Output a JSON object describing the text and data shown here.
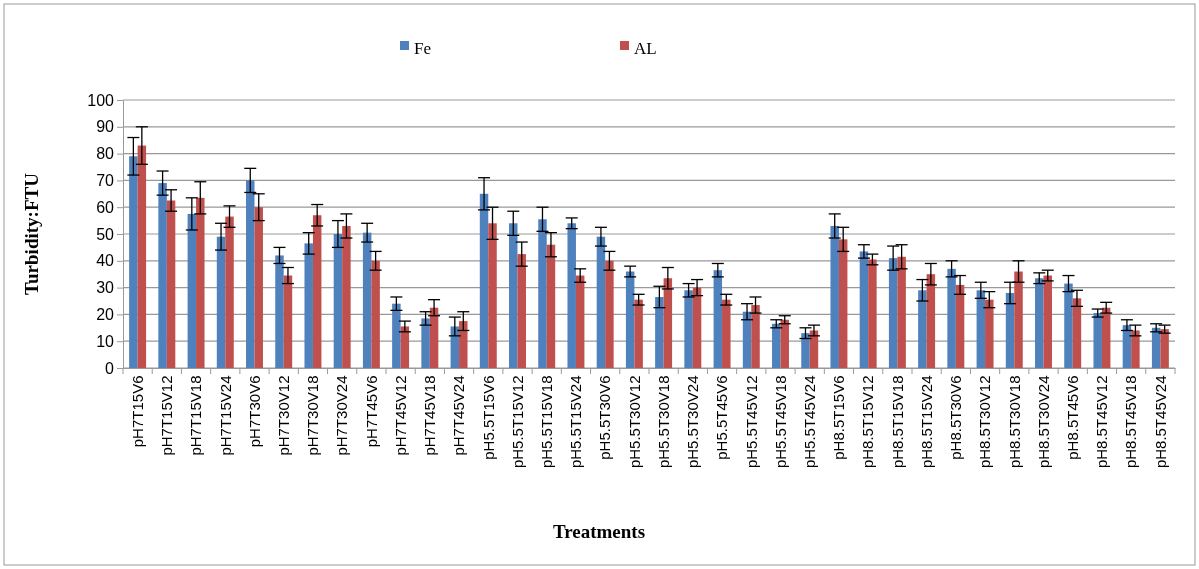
{
  "chart_data": {
    "type": "bar",
    "xlabel": "Treatments",
    "ylabel": "Turbidity:FTU",
    "categories": [
      "pH7T15V6",
      "pH7T15V12",
      "pH7T15V18",
      "pH7T15V24",
      "pH7T30V6",
      "pH7T30V12",
      "pH7T30V18",
      "pH7T30V24",
      "pH7T45V6",
      "pH7T45V12",
      "pH7T45V18",
      "pH7T45V24",
      "pH5.5T15V6",
      "pH5.5T15V12",
      "pH5.5T15V18",
      "pH5.5T15V24",
      "pH5.5T30V6",
      "pH5.5T30V12",
      "pH5.5T30V18",
      "pH5.5T30V24",
      "pH5.5T45V6",
      "pH5.5T45V12",
      "pH5.5T45V18",
      "pH5.5T45V24",
      "pH8.5T15V6",
      "pH8.5T15V12",
      "pH8.5T15V18",
      "pH8.5T15V24",
      "pH8.5T30V6",
      "pH8.5T30V12",
      "pH8.5T30V18",
      "pH8.5T30V24",
      "pH8.5T45V6",
      "pH8.5T45V12",
      "pH8.5T45V18",
      "pH8.5T45V24"
    ],
    "series": [
      {
        "name": "Fe",
        "color": "#4f81bd",
        "values": [
          79,
          69,
          57.5,
          49,
          70,
          42,
          46.5,
          50,
          50.5,
          24,
          18.5,
          15.5,
          65,
          54,
          55.5,
          54,
          49,
          36,
          26.5,
          29,
          36.5,
          21,
          16.5,
          13,
          53,
          43.5,
          41,
          29,
          37,
          29,
          28,
          33.5,
          31.5,
          20.5,
          16,
          15
        ],
        "errors": [
          7,
          4.5,
          6,
          5,
          4.5,
          3,
          4,
          5,
          3.5,
          2.5,
          2.5,
          3.5,
          6,
          4.5,
          4.5,
          2,
          3.5,
          2,
          4,
          2.5,
          2.5,
          3,
          1.5,
          2,
          4.5,
          2.5,
          4.5,
          4,
          3,
          3,
          4,
          2,
          3,
          1.5,
          2,
          1.5
        ]
      },
      {
        "name": "AL",
        "color": "#c0504d",
        "values": [
          83,
          62.5,
          63.5,
          56.5,
          60,
          34.5,
          57,
          53,
          40,
          15.5,
          22.5,
          17.5,
          54,
          42.5,
          46,
          34.5,
          40,
          25.5,
          33.5,
          30,
          25.5,
          23.5,
          18,
          14,
          48,
          40.5,
          41.5,
          35,
          31,
          25.5,
          36,
          34.5,
          26,
          22.5,
          14,
          14.5
        ],
        "errors": [
          7,
          4,
          6,
          4,
          5,
          3,
          4,
          4.5,
          3.5,
          2,
          3,
          3.5,
          6,
          4.5,
          4.5,
          2.5,
          3.5,
          2,
          4,
          3,
          2,
          3,
          1.5,
          2,
          4.5,
          2,
          4.5,
          4,
          3.5,
          3,
          4,
          2,
          3,
          2,
          2,
          1.5
        ]
      }
    ],
    "ylim": [
      0,
      100
    ],
    "yticks": [
      0,
      10,
      20,
      30,
      40,
      50,
      60,
      70,
      80,
      90,
      100
    ],
    "grid": "y",
    "legend": "top"
  }
}
